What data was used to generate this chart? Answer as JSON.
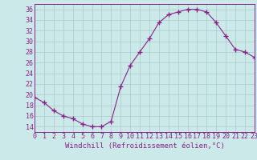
{
  "x": [
    0,
    1,
    2,
    3,
    4,
    5,
    6,
    7,
    8,
    9,
    10,
    11,
    12,
    13,
    14,
    15,
    16,
    17,
    18,
    19,
    20,
    21,
    22,
    23
  ],
  "y": [
    19.5,
    18.5,
    17.0,
    16.0,
    15.5,
    14.5,
    14.0,
    14.0,
    15.0,
    21.5,
    25.5,
    28.0,
    30.5,
    33.5,
    35.0,
    35.5,
    36.0,
    36.0,
    35.5,
    33.5,
    31.0,
    28.5,
    28.0,
    27.0
  ],
  "line_color": "#882288",
  "marker": "+",
  "marker_size": 4,
  "xlabel": "Windchill (Refroidissement éolien,°C)",
  "ylim": [
    13,
    37
  ],
  "xlim": [
    0,
    23
  ],
  "yticks": [
    14,
    16,
    18,
    20,
    22,
    24,
    26,
    28,
    30,
    32,
    34,
    36
  ],
  "xtick_labels": [
    "0",
    "1",
    "2",
    "3",
    "4",
    "5",
    "6",
    "7",
    "8",
    "9",
    "10",
    "11",
    "12",
    "13",
    "14",
    "15",
    "16",
    "17",
    "18",
    "19",
    "20",
    "21",
    "22",
    "23"
  ],
  "bg_color": "#cce9e9",
  "grid_color": "#aacccc",
  "xlabel_fontsize": 6.5,
  "tick_fontsize": 6.0
}
